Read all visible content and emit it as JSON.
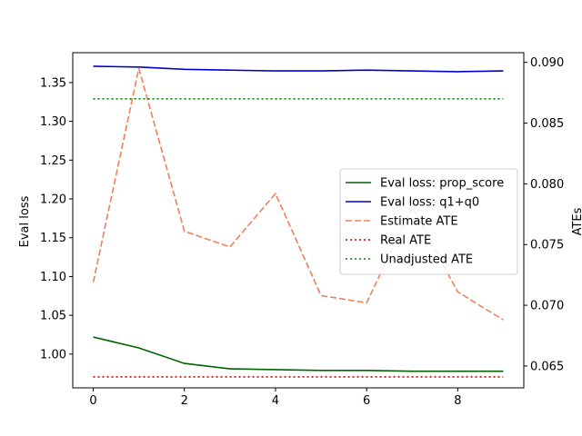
{
  "chart_data": {
    "type": "line",
    "x": [
      0,
      1,
      2,
      3,
      4,
      5,
      6,
      7,
      8,
      9
    ],
    "x_ticks": [
      "0",
      "2",
      "4",
      "6",
      "8"
    ],
    "xlim": [
      -0.45,
      9.45
    ],
    "left_axis": {
      "label": "Eval loss",
      "ylim": [
        0.9565,
        1.3885
      ],
      "ticks": [
        "1.00",
        "1.05",
        "1.10",
        "1.15",
        "1.20",
        "1.25",
        "1.30",
        "1.35"
      ]
    },
    "right_axis": {
      "label": "ATEs",
      "ylim": [
        0.0632,
        0.0908
      ],
      "ticks": [
        "0.065",
        "0.070",
        "0.075",
        "0.080",
        "0.085",
        "0.090"
      ]
    },
    "series": [
      {
        "name": "Eval loss: prop_score",
        "axis": "left",
        "color": "#006400",
        "style": "solid",
        "values": [
          1.022,
          1.008,
          0.988,
          0.981,
          0.98,
          0.979,
          0.979,
          0.978,
          0.978,
          0.978
        ]
      },
      {
        "name": "Eval loss: q1+q0",
        "axis": "left",
        "color": "#0000cd",
        "style": "solid",
        "values": [
          1.371,
          1.37,
          1.367,
          1.366,
          1.365,
          1.365,
          1.366,
          1.365,
          1.364,
          1.365
        ]
      },
      {
        "name": "Estimate ATE",
        "axis": "right",
        "color": "#f0805a",
        "style": "dashed",
        "values": [
          0.0719,
          0.0895,
          0.0761,
          0.0748,
          0.0792,
          0.0708,
          0.0702,
          0.0781,
          0.0711,
          0.0688
        ]
      },
      {
        "name": "Real ATE",
        "axis": "right",
        "color": "#cc0000",
        "style": "dotted",
        "values": [
          0.0641,
          0.0641,
          0.0641,
          0.0641,
          0.0641,
          0.0641,
          0.0641,
          0.0641,
          0.0641,
          0.0641
        ]
      },
      {
        "name": "Unadjusted ATE",
        "axis": "right",
        "color": "#008000",
        "style": "dotted",
        "values": [
          0.087,
          0.087,
          0.087,
          0.087,
          0.087,
          0.087,
          0.087,
          0.087,
          0.087,
          0.087
        ]
      }
    ],
    "grid": false,
    "legend_position": "center-right"
  }
}
